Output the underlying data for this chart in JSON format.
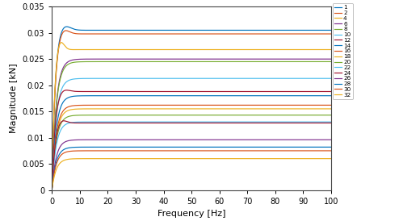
{
  "title": "",
  "xlabel": "Frequency [Hz]",
  "ylabel": "Magnitude [kN]",
  "xlim": [
    0,
    100
  ],
  "ylim": [
    0,
    0.035
  ],
  "series": [
    {
      "label": "1",
      "steady": 0.0305,
      "peak_freq": 3.8,
      "peak_val": 0.0318,
      "tau": 1.2,
      "color": "#0072BD"
    },
    {
      "label": "2",
      "steady": 0.0298,
      "peak_freq": 3.5,
      "peak_val": 0.0312,
      "tau": 1.2,
      "color": "#D95319"
    },
    {
      "label": "4",
      "steady": 0.0268,
      "peak_freq": 2.5,
      "peak_val": 0.0295,
      "tau": 1.0,
      "color": "#EDB120"
    },
    {
      "label": "6",
      "steady": 0.025,
      "peak_freq": 0.0,
      "peak_val": 0.025,
      "tau": 1.5,
      "color": "#7E2F8E"
    },
    {
      "label": "8",
      "steady": 0.0245,
      "peak_freq": 0.0,
      "peak_val": 0.0245,
      "tau": 1.5,
      "color": "#77AC30"
    },
    {
      "label": "10",
      "steady": 0.0213,
      "peak_freq": 0.0,
      "peak_val": 0.0213,
      "tau": 1.5,
      "color": "#4DBEEE"
    },
    {
      "label": "12",
      "steady": 0.0188,
      "peak_freq": 3.5,
      "peak_val": 0.0195,
      "tau": 1.2,
      "color": "#A2142F"
    },
    {
      "label": "14",
      "steady": 0.018,
      "peak_freq": 0.0,
      "peak_val": 0.018,
      "tau": 1.5,
      "color": "#0072BD"
    },
    {
      "label": "16",
      "steady": 0.0162,
      "peak_freq": 0.0,
      "peak_val": 0.0162,
      "tau": 1.5,
      "color": "#D95319"
    },
    {
      "label": "18",
      "steady": 0.0155,
      "peak_freq": 0.0,
      "peak_val": 0.0155,
      "tau": 1.5,
      "color": "#EDB120"
    },
    {
      "label": "20",
      "steady": 0.0143,
      "peak_freq": 0.0,
      "peak_val": 0.0143,
      "tau": 1.5,
      "color": "#77AC30"
    },
    {
      "label": "22",
      "steady": 0.013,
      "peak_freq": 0.0,
      "peak_val": 0.013,
      "tau": 1.5,
      "color": "#EDB120"
    },
    {
      "label": "24",
      "steady": 0.0128,
      "peak_freq": 3.0,
      "peak_val": 0.0138,
      "tau": 1.2,
      "color": "#4DBEEE"
    },
    {
      "label": "26",
      "steady": 0.0096,
      "peak_freq": 0.0,
      "peak_val": 0.0096,
      "tau": 1.5,
      "color": "#A2142F"
    },
    {
      "label": "28",
      "steady": 0.0082,
      "peak_freq": 0.0,
      "peak_val": 0.0082,
      "tau": 1.5,
      "color": "#0072BD"
    },
    {
      "label": "30",
      "steady": 0.0075,
      "peak_freq": 0.0,
      "peak_val": 0.0075,
      "tau": 1.5,
      "color": "#D95319"
    },
    {
      "label": "32",
      "steady": 0.006,
      "peak_freq": 0.0,
      "peak_val": 0.006,
      "tau": 1.5,
      "color": "#EDB120"
    }
  ],
  "yticks": [
    0,
    0.005,
    0.01,
    0.015,
    0.02,
    0.025,
    0.03,
    0.035
  ],
  "xticks": [
    0,
    10,
    20,
    30,
    40,
    50,
    60,
    70,
    80,
    90,
    100
  ],
  "bg_color": "#FFFFFF"
}
